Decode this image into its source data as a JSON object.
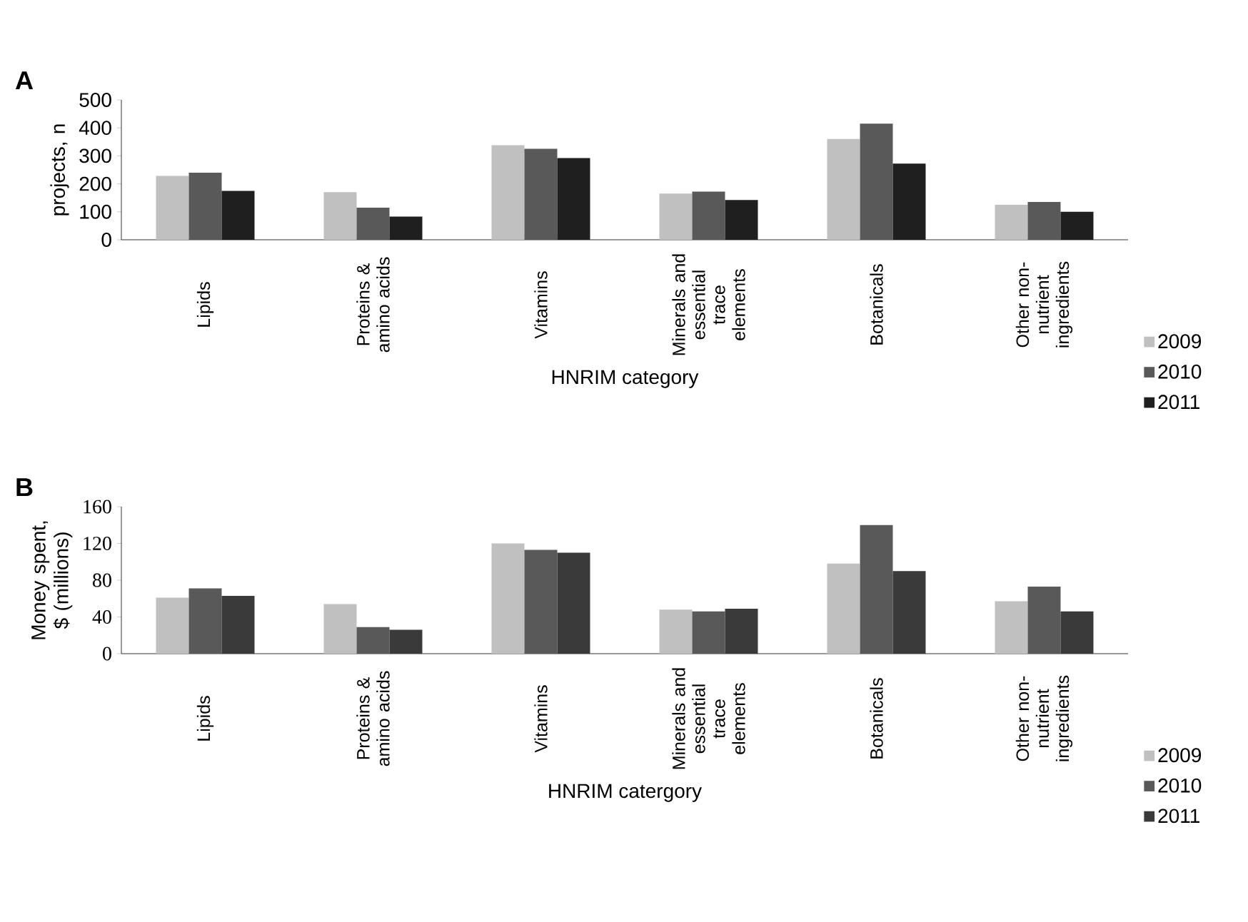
{
  "chart_data": [
    {
      "type": "bar",
      "title": "A",
      "xlabel": "HNRIM category",
      "ylabel": "projects, n",
      "categories": [
        "Lipids",
        "Proteins & amino acids",
        "Vitamins",
        "Minerals and essential trace elements",
        "Botanicals",
        "Other non-nutrient ingredients"
      ],
      "series": [
        {
          "name": "2009",
          "color": "#c0c0c0",
          "values": [
            228,
            170,
            338,
            165,
            360,
            125
          ]
        },
        {
          "name": "2010",
          "color": "#595959",
          "values": [
            240,
            115,
            325,
            172,
            415,
            135
          ]
        },
        {
          "name": "2011",
          "color": "#1f1f1f",
          "values": [
            175,
            83,
            292,
            142,
            272,
            100
          ]
        }
      ],
      "ylim": [
        0,
        500
      ],
      "yticks": [
        0,
        100,
        200,
        300,
        400,
        500
      ],
      "legend": "right"
    },
    {
      "type": "bar",
      "title": "B",
      "xlabel": "HNRIM catergory",
      "ylabel": "Money spent, $ (millions)",
      "categories": [
        "Lipids",
        "Proteins & amino acids",
        "Vitamins",
        "Minerals and essential trace elements",
        "Botanicals",
        "Other non-nutrient ingredients"
      ],
      "series": [
        {
          "name": "2009",
          "color": "#c0c0c0",
          "values": [
            61,
            54,
            120,
            48,
            98,
            57
          ]
        },
        {
          "name": "2010",
          "color": "#595959",
          "values": [
            71,
            29,
            113,
            46,
            140,
            73
          ]
        },
        {
          "name": "2011",
          "color": "#3a3a3a",
          "values": [
            63,
            26,
            110,
            49,
            90,
            46
          ]
        }
      ],
      "ylim": [
        0,
        160
      ],
      "yticks": [
        0,
        40,
        80,
        120,
        160
      ],
      "legend": "right"
    }
  ]
}
